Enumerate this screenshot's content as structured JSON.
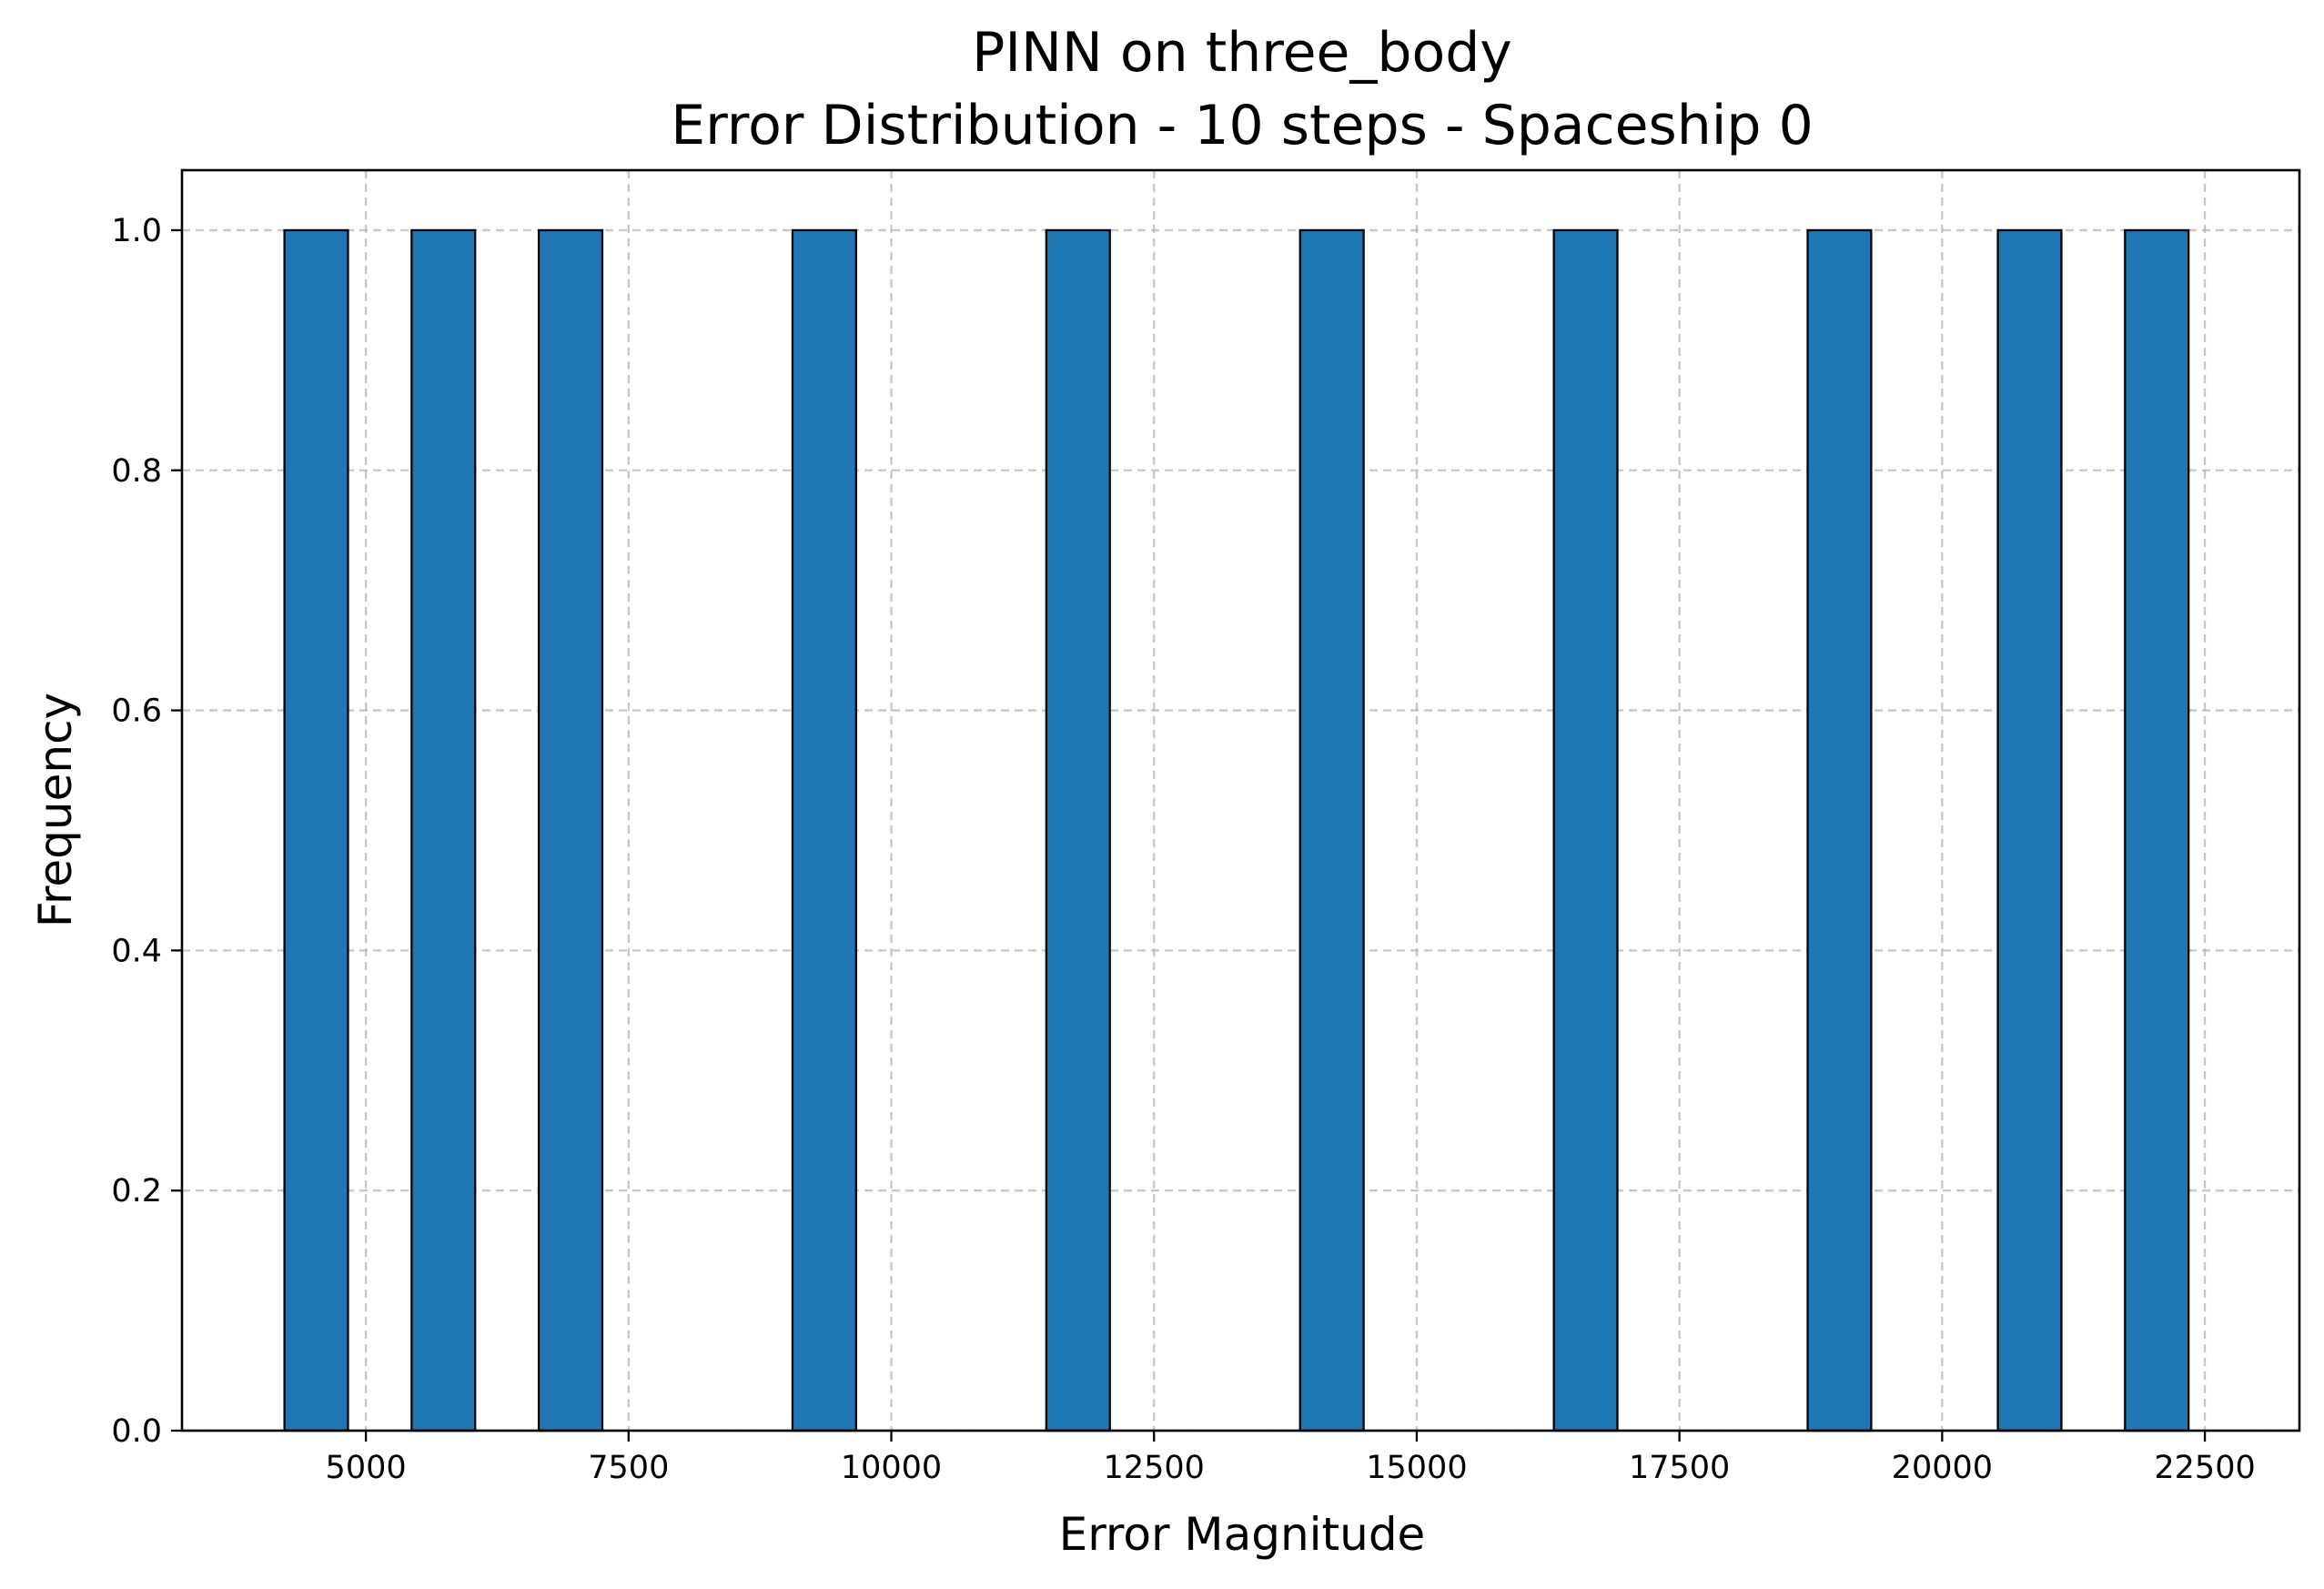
{
  "chart_data": {
    "type": "bar",
    "title_line1": "PINN on three_body",
    "title_line2": "Error Distribution - 10 steps - Spaceship 0",
    "xlabel": "Error Magnitude",
    "ylabel": "Frequency",
    "xlim": [
      3250,
      23400
    ],
    "ylim": [
      0,
      1.05
    ],
    "grid": true,
    "bar_color": "#1f77b4",
    "edge_color": "#000000",
    "bin_width": 605,
    "bins": [
      {
        "x0": 4225,
        "x1": 4830,
        "count": 1
      },
      {
        "x0": 5435,
        "x1": 6040,
        "count": 1
      },
      {
        "x0": 6645,
        "x1": 7250,
        "count": 1
      },
      {
        "x0": 9060,
        "x1": 9665,
        "count": 1
      },
      {
        "x0": 11475,
        "x1": 12080,
        "count": 1
      },
      {
        "x0": 13890,
        "x1": 14495,
        "count": 1
      },
      {
        "x0": 16305,
        "x1": 16910,
        "count": 1
      },
      {
        "x0": 18720,
        "x1": 19325,
        "count": 1
      },
      {
        "x0": 20530,
        "x1": 21135,
        "count": 1
      },
      {
        "x0": 21740,
        "x1": 22345,
        "count": 1
      }
    ],
    "x_ticks": [
      {
        "value": 5000,
        "label": "5000"
      },
      {
        "value": 7500,
        "label": "7500"
      },
      {
        "value": 10000,
        "label": "10000"
      },
      {
        "value": 12500,
        "label": "12500"
      },
      {
        "value": 15000,
        "label": "15000"
      },
      {
        "value": 17500,
        "label": "17500"
      },
      {
        "value": 20000,
        "label": "20000"
      },
      {
        "value": 22500,
        "label": "22500"
      }
    ],
    "y_ticks": [
      {
        "value": 0.0,
        "label": "0.0"
      },
      {
        "value": 0.2,
        "label": "0.2"
      },
      {
        "value": 0.4,
        "label": "0.4"
      },
      {
        "value": 0.6,
        "label": "0.6"
      },
      {
        "value": 0.8,
        "label": "0.8"
      },
      {
        "value": 1.0,
        "label": "1.0"
      }
    ]
  }
}
